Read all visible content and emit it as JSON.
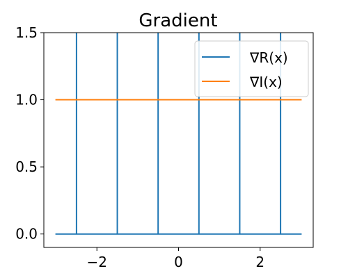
{
  "chart_data": {
    "type": "line",
    "title": "Gradient",
    "xlabel": "",
    "ylabel": "",
    "xlim": [
      -3.3,
      3.3
    ],
    "ylim": [
      -0.1,
      1.5
    ],
    "xticks": [
      -2,
      0,
      2
    ],
    "xtick_labels": [
      "−2",
      "0",
      "2"
    ],
    "yticks": [
      0.0,
      0.5,
      1.0,
      1.5
    ],
    "ytick_labels": [
      "0.0",
      "0.5",
      "1.0",
      "1.5"
    ],
    "grid": false,
    "legend_position": "top-right",
    "series": [
      {
        "name": "∇R(x)",
        "color": "#1f77b4",
        "x": [
          -3,
          -2.5,
          -2.5,
          -2.5,
          -1.5,
          -1.5,
          -1.5,
          -0.5,
          -0.5,
          -0.5,
          0.5,
          0.5,
          0.5,
          1.5,
          1.5,
          1.5,
          2.5,
          2.5,
          2.5,
          3
        ],
        "y": [
          0,
          0,
          1.5,
          0,
          0,
          1.5,
          0,
          0,
          1.5,
          0,
          0,
          1.5,
          0,
          0,
          1.5,
          0,
          0,
          1.5,
          0,
          0
        ]
      },
      {
        "name": "∇I(x)",
        "color": "#ff7f0e",
        "x": [
          -3,
          3
        ],
        "y": [
          1,
          1
        ]
      }
    ]
  }
}
